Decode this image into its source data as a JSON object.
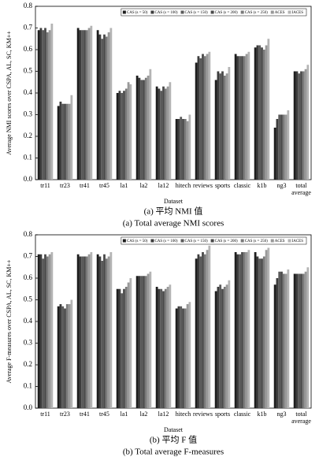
{
  "chart_data": [
    {
      "type": "bar",
      "y_label": "Average NMI scores over CSPA, AL, SC, KM++",
      "x_label": "Dataset",
      "captions": [
        "(a) 平均 NMI 值",
        "(a) Total average NMI scores"
      ],
      "categories": [
        "tr11",
        "tr23",
        "tr41",
        "tr45",
        "la1",
        "la2",
        "la12",
        "hitech",
        "reviews",
        "sports",
        "classic",
        "k1b",
        "ng3",
        "total average"
      ],
      "ylim": [
        0,
        0.8
      ],
      "yticks": [
        {
          "value": 0,
          "label": "0.0"
        },
        0.1,
        0.2,
        0.3,
        0.4,
        0.5,
        0.6,
        0.7,
        0.8
      ],
      "series": [
        {
          "name": "CAS (s = 50)",
          "color": "#1e1e1e",
          "values": [
            0.69,
            0.34,
            0.7,
            0.69,
            0.4,
            0.48,
            0.43,
            0.28,
            0.54,
            0.46,
            0.58,
            0.61,
            0.24,
            0.5
          ]
        },
        {
          "name": "CAS (s = 100)",
          "color": "#3c3c3c",
          "values": [
            0.7,
            0.36,
            0.69,
            0.67,
            0.41,
            0.47,
            0.42,
            0.28,
            0.57,
            0.5,
            0.57,
            0.62,
            0.28,
            0.5
          ]
        },
        {
          "name": "CAS (s = 150)",
          "color": "#5a5a5a",
          "values": [
            0.69,
            0.35,
            0.69,
            0.65,
            0.4,
            0.46,
            0.41,
            0.29,
            0.56,
            0.49,
            0.57,
            0.62,
            0.3,
            0.49
          ]
        },
        {
          "name": "CAS (s = 200)",
          "color": "#4a4a4a",
          "values": [
            0.7,
            0.35,
            0.69,
            0.67,
            0.41,
            0.46,
            0.43,
            0.28,
            0.58,
            0.5,
            0.57,
            0.61,
            0.3,
            0.5
          ]
        },
        {
          "name": "CAS (s = 250)",
          "color": "#7a7a7a",
          "values": [
            0.68,
            0.35,
            0.69,
            0.66,
            0.42,
            0.47,
            0.42,
            0.28,
            0.57,
            0.48,
            0.57,
            0.6,
            0.3,
            0.5
          ]
        },
        {
          "name": "ACES",
          "color": "#999999",
          "values": [
            0.69,
            0.35,
            0.7,
            0.68,
            0.45,
            0.48,
            0.43,
            0.27,
            0.58,
            0.49,
            0.58,
            0.62,
            0.3,
            0.51
          ]
        },
        {
          "name": "IACES",
          "color": "#b4b4b4",
          "values": [
            0.72,
            0.39,
            0.71,
            0.7,
            0.44,
            0.51,
            0.45,
            0.3,
            0.59,
            0.52,
            0.59,
            0.65,
            0.32,
            0.53
          ]
        }
      ]
    },
    {
      "type": "bar",
      "y_label": "Average F-measures over CSPA, AL, SC, KM++",
      "x_label": "Dataset",
      "captions": [
        "(b) 平均 F 值",
        "(b) Total average F-measures"
      ],
      "categories": [
        "tr11",
        "tr23",
        "tr41",
        "tr45",
        "la1",
        "la2",
        "la12",
        "hitech",
        "reviews",
        "sports",
        "classic",
        "k1b",
        "ng3",
        "total average"
      ],
      "ylim": [
        0,
        0.8
      ],
      "yticks": [
        {
          "value": 0,
          "label": "0.0"
        },
        0.1,
        0.2,
        0.3,
        0.4,
        0.5,
        0.6,
        0.7,
        0.8
      ],
      "series": [
        {
          "name": "CAS (s = 50)",
          "color": "#1e1e1e",
          "values": [
            0.71,
            0.47,
            0.71,
            0.71,
            0.55,
            0.61,
            0.56,
            0.46,
            0.69,
            0.54,
            0.72,
            0.72,
            0.57,
            0.62
          ]
        },
        {
          "name": "CAS (s = 100)",
          "color": "#3c3c3c",
          "values": [
            0.71,
            0.48,
            0.7,
            0.7,
            0.55,
            0.61,
            0.55,
            0.47,
            0.71,
            0.56,
            0.71,
            0.7,
            0.6,
            0.62
          ]
        },
        {
          "name": "CAS (s = 150)",
          "color": "#5a5a5a",
          "values": [
            0.69,
            0.47,
            0.7,
            0.68,
            0.53,
            0.61,
            0.55,
            0.47,
            0.7,
            0.57,
            0.71,
            0.69,
            0.63,
            0.62
          ]
        },
        {
          "name": "CAS (s = 200)",
          "color": "#4a4a4a",
          "values": [
            0.71,
            0.46,
            0.7,
            0.71,
            0.55,
            0.61,
            0.54,
            0.46,
            0.72,
            0.55,
            0.72,
            0.69,
            0.63,
            0.62
          ]
        },
        {
          "name": "CAS (s = 250)",
          "color": "#7a7a7a",
          "values": [
            0.7,
            0.48,
            0.7,
            0.69,
            0.56,
            0.61,
            0.55,
            0.46,
            0.71,
            0.56,
            0.72,
            0.7,
            0.62,
            0.62
          ]
        },
        {
          "name": "ACES",
          "color": "#999999",
          "values": [
            0.71,
            0.48,
            0.71,
            0.7,
            0.58,
            0.62,
            0.56,
            0.48,
            0.73,
            0.57,
            0.72,
            0.73,
            0.62,
            0.63
          ]
        },
        {
          "name": "IACES",
          "color": "#b4b4b4",
          "values": [
            0.72,
            0.5,
            0.72,
            0.72,
            0.6,
            0.63,
            0.57,
            0.49,
            0.75,
            0.59,
            0.73,
            0.74,
            0.64,
            0.65
          ]
        }
      ]
    }
  ]
}
